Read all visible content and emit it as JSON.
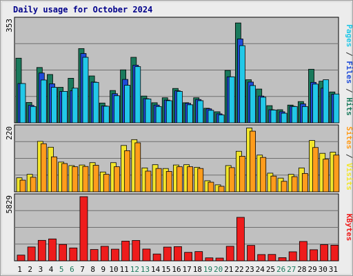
{
  "chart_data": {
    "type": "bar",
    "title": "Daily usage for October 2024",
    "categories": [
      "1",
      "2",
      "3",
      "4",
      "5",
      "6",
      "7",
      "8",
      "9",
      "10",
      "11",
      "12",
      "13",
      "14",
      "15",
      "16",
      "17",
      "18",
      "19",
      "20",
      "21",
      "22",
      "23",
      "24",
      "25",
      "26",
      "27",
      "28",
      "29",
      "30",
      "31"
    ],
    "weekend_days": [
      "5",
      "6",
      "12",
      "13",
      "19",
      "20",
      "26",
      "27"
    ],
    "panels": [
      {
        "name": "hits-files-pages",
        "ymax": 353,
        "ymax_label": "353",
        "series": [
          {
            "name": "Hits",
            "color": "#1a7a5c",
            "values": [
              222,
              70,
              190,
              166,
              122,
              153,
              255,
              161,
              68,
              111,
              182,
              225,
              92,
              69,
              86,
              118,
              69,
              86,
              50,
              38,
              180,
              343,
              148,
              116,
              59,
              45,
              61,
              73,
              184,
              143,
              106
            ]
          },
          {
            "name": "Files",
            "color": "#1f4bd8",
            "values": [
              135,
              60,
              171,
              134,
              108,
              110,
              238,
              140,
              58,
              100,
              149,
              198,
              83,
              61,
              78,
              110,
              67,
              80,
              48,
              31,
              158,
              288,
              140,
              92,
              45,
              38,
              57,
              65,
              139,
              119,
              98
            ]
          },
          {
            "name": "Pages",
            "color": "#22c8e8",
            "values": [
              135,
              56,
              147,
              122,
              108,
              119,
              225,
              139,
              57,
              93,
              129,
              193,
              82,
              56,
              76,
              108,
              62,
              76,
              43,
              27,
              158,
              265,
              128,
              88,
              44,
              33,
              56,
              56,
              133,
              148,
              99
            ]
          }
        ],
        "label_parts": [
          {
            "text": "Pages",
            "color": "#22c8e8"
          },
          {
            "text": " / ",
            "color": "#333333"
          },
          {
            "text": "Files",
            "color": "#1f4bd8"
          },
          {
            "text": " / ",
            "color": "#333333"
          },
          {
            "text": "Hits",
            "color": "#1a7a5c"
          }
        ]
      },
      {
        "name": "visits-sites",
        "ymax": 220,
        "ymax_label": "220",
        "series": [
          {
            "name": "Visits",
            "color": "#f2e62c",
            "values": [
              48,
              60,
              173,
              153,
              102,
              90,
              92,
              100,
              68,
              100,
              159,
              179,
              82,
              93,
              80,
              92,
              93,
              84,
              38,
              24,
              90,
              139,
              219,
              126,
              64,
              47,
              60,
              82,
              176,
              132,
              136
            ]
          },
          {
            "name": "Sites",
            "color": "#ff9c1c",
            "values": [
              40,
              50,
              165,
              120,
              97,
              86,
              87,
              91,
              60,
              86,
              141,
              168,
              71,
              80,
              70,
              86,
              86,
              80,
              33,
              19,
              83,
              122,
              208,
              118,
              54,
              36,
              52,
              63,
              152,
              112,
              126
            ]
          }
        ],
        "label_parts": [
          {
            "text": "Sites",
            "color": "#ff9c1c"
          },
          {
            "text": " / ",
            "color": "#333333"
          },
          {
            "text": "Visits",
            "color": "#f2e62c"
          }
        ]
      },
      {
        "name": "kbytes",
        "ymax": 5829,
        "ymax_label": "5829",
        "series": [
          {
            "name": "KBytes",
            "color": "#ee1c1c",
            "values": [
              520,
              1260,
              1860,
              1990,
              1490,
              1170,
              5829,
              1030,
              1320,
              1060,
              1790,
              1850,
              1070,
              620,
              1250,
              1290,
              770,
              840,
              270,
              250,
              1320,
              3950,
              1400,
              570,
              580,
              290,
              820,
              1760,
              1010,
              1470,
              1420
            ]
          }
        ],
        "label_parts": [
          {
            "text": "KBytes",
            "color": "#ee1c1c"
          }
        ]
      }
    ]
  }
}
